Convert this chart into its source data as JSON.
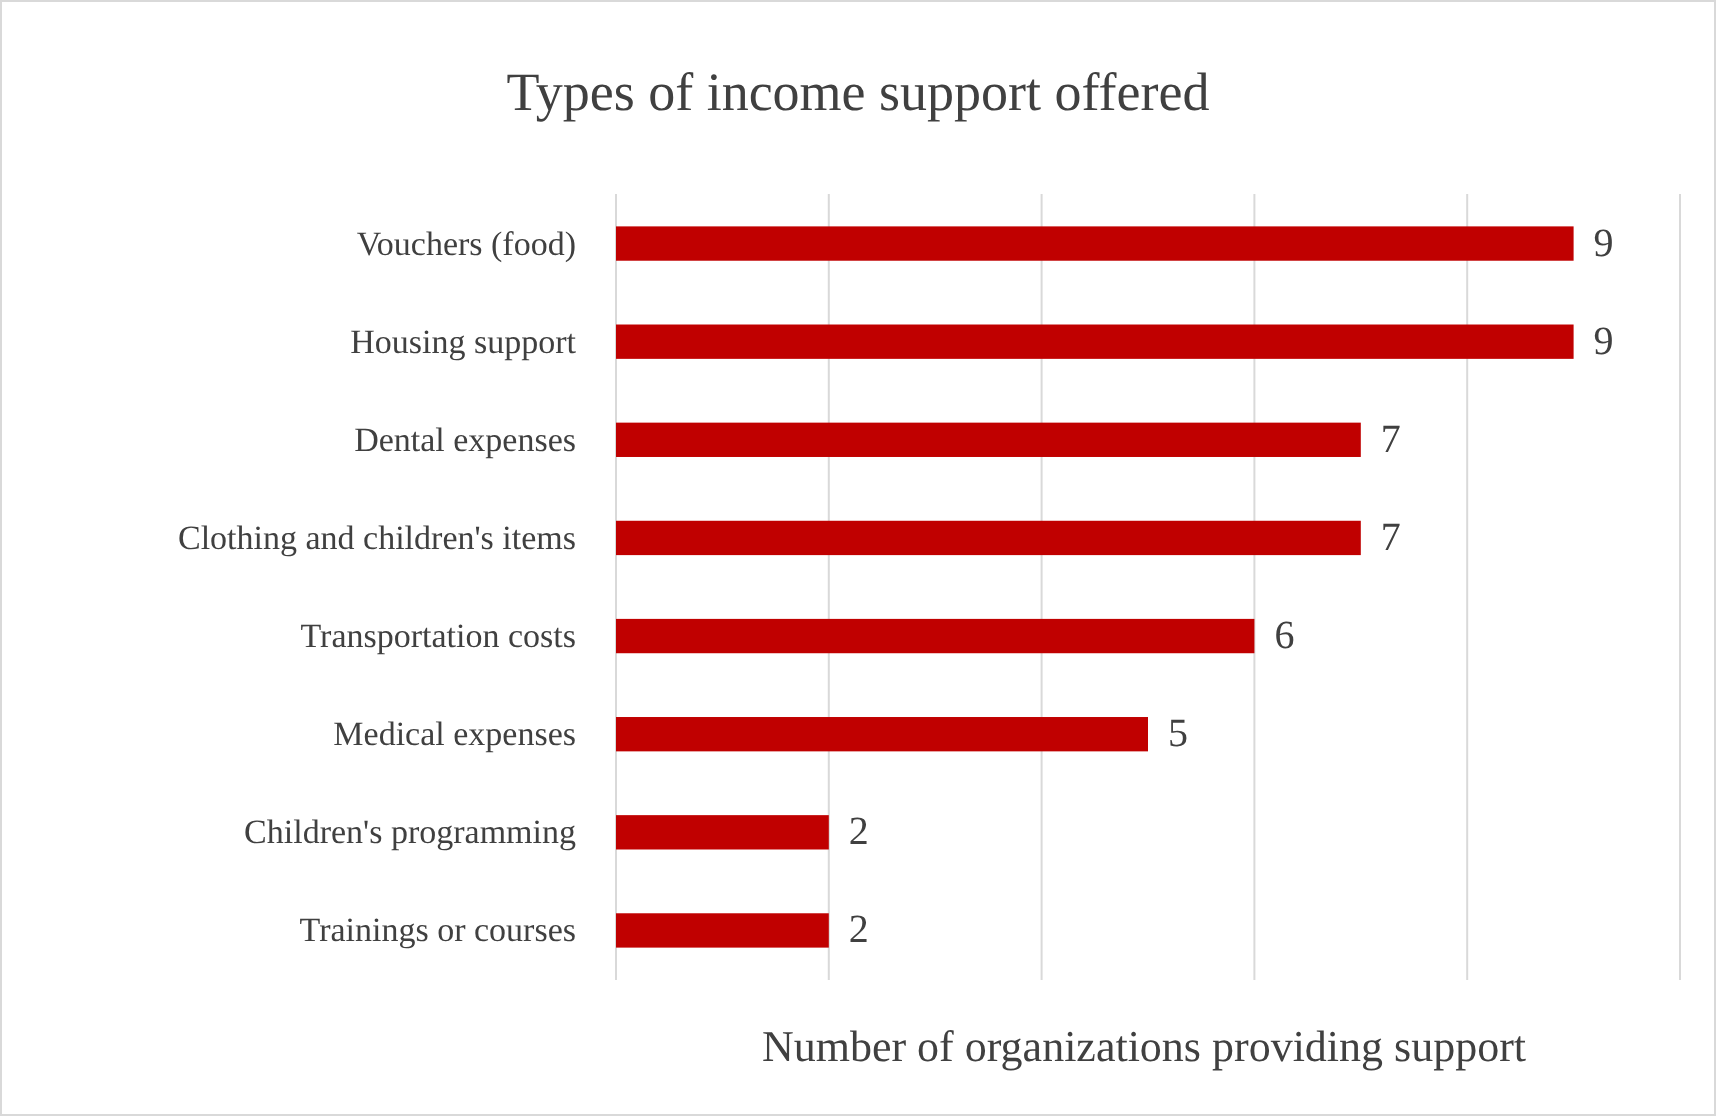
{
  "chart_data": {
    "type": "bar",
    "orientation": "horizontal",
    "title": "Types of income support offered",
    "xlabel": "Number of organizations providing support",
    "categories": [
      "Vouchers (food)",
      "Housing support",
      "Dental expenses",
      "Clothing and children's items",
      "Transportation costs",
      "Medical expenses",
      "Children's programming",
      "Trainings or courses"
    ],
    "values": [
      9,
      9,
      7,
      7,
      6,
      5,
      2,
      2
    ],
    "color": "#c00000",
    "data_labels": true,
    "xlim": [
      0,
      10
    ],
    "xticks": [
      {
        "value": 0,
        "label": null
      },
      {
        "value": 2,
        "label": null
      },
      {
        "value": 4,
        "label": null
      },
      {
        "value": 6,
        "label": null
      },
      {
        "value": 8,
        "label": null
      },
      {
        "value": 10,
        "label": null
      }
    ],
    "grid": "x",
    "tick_labels": "y"
  }
}
